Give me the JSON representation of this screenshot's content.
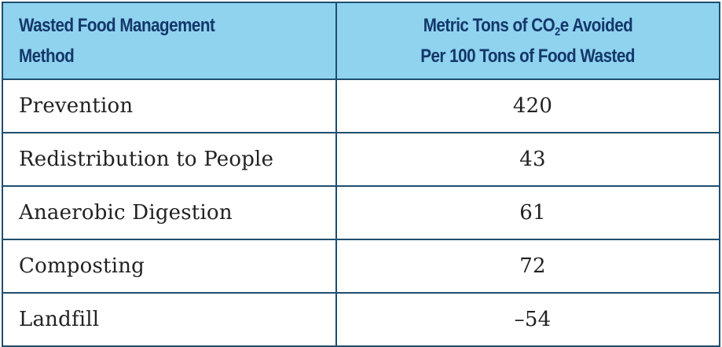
{
  "table": {
    "header": {
      "method": [
        "Wasted Food Management",
        "Method"
      ],
      "value_line1_prefix": "Metric Tons of CO",
      "value_line1_sub": "2",
      "value_line1_suffix": "e Avoided",
      "value_line2": "Per 100 Tons of Food Wasted"
    },
    "rows": [
      {
        "method": "Prevention",
        "value": "420"
      },
      {
        "method": "Redistribution to People",
        "value": "43"
      },
      {
        "method": "Anaerobic Digestion",
        "value": "61"
      },
      {
        "method": "Composting",
        "value": "72"
      },
      {
        "method": "Landfill",
        "value": "–54"
      }
    ]
  }
}
